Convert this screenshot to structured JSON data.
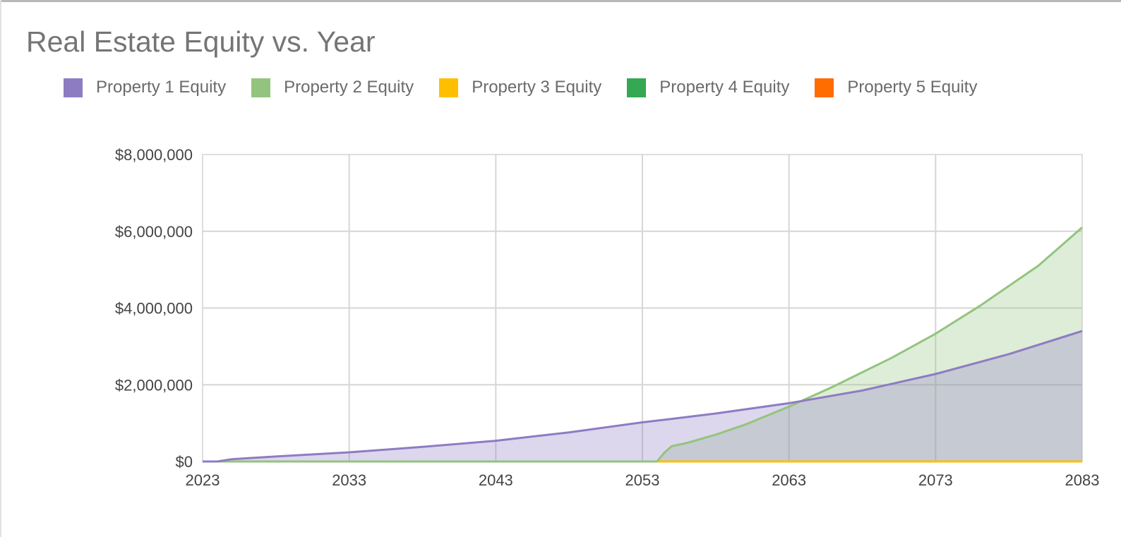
{
  "chart_data": {
    "type": "area",
    "title": "Real Estate Equity vs. Year",
    "xlabel": "",
    "ylabel": "",
    "xlim": [
      2023,
      2083
    ],
    "ylim": [
      0,
      8000000
    ],
    "x_ticks": [
      "2023",
      "2033",
      "2043",
      "2053",
      "2063",
      "2073",
      "2083"
    ],
    "y_ticks": [
      "$0",
      "$2,000,000",
      "$4,000,000",
      "$6,000,000",
      "$8,000,000"
    ],
    "grid": true,
    "legend_position": "top",
    "series": [
      {
        "name": "Property 1 Equity",
        "color": "#8e7cc3",
        "points": [
          [
            2023,
            0
          ],
          [
            2024,
            0
          ],
          [
            2025,
            60000
          ],
          [
            2028,
            130000
          ],
          [
            2033,
            240000
          ],
          [
            2038,
            380000
          ],
          [
            2043,
            540000
          ],
          [
            2048,
            760000
          ],
          [
            2053,
            1020000
          ],
          [
            2055,
            1110000
          ],
          [
            2058,
            1250000
          ],
          [
            2063,
            1520000
          ],
          [
            2068,
            1850000
          ],
          [
            2073,
            2280000
          ],
          [
            2078,
            2800000
          ],
          [
            2083,
            3400000
          ]
        ]
      },
      {
        "name": "Property 2 Equity",
        "color": "#93c47d",
        "points": [
          [
            2023,
            0
          ],
          [
            2054,
            0
          ],
          [
            2054.5,
            230000
          ],
          [
            2055,
            400000
          ],
          [
            2056,
            480000
          ],
          [
            2058,
            700000
          ],
          [
            2060,
            960000
          ],
          [
            2063,
            1430000
          ],
          [
            2066,
            1950000
          ],
          [
            2070,
            2700000
          ],
          [
            2073,
            3330000
          ],
          [
            2076,
            4050000
          ],
          [
            2080,
            5100000
          ],
          [
            2083,
            6100000
          ]
        ]
      },
      {
        "name": "Property 3 Equity",
        "color": "#ffbf00",
        "points": [
          [
            2023,
            0
          ],
          [
            2083,
            0
          ]
        ]
      },
      {
        "name": "Property 4 Equity",
        "color": "#34a853",
        "points": [
          [
            2023,
            0
          ],
          [
            2083,
            0
          ]
        ]
      },
      {
        "name": "Property 5 Equity",
        "color": "#ff6d01",
        "points": [
          [
            2023,
            0
          ],
          [
            2083,
            0
          ]
        ]
      }
    ]
  }
}
